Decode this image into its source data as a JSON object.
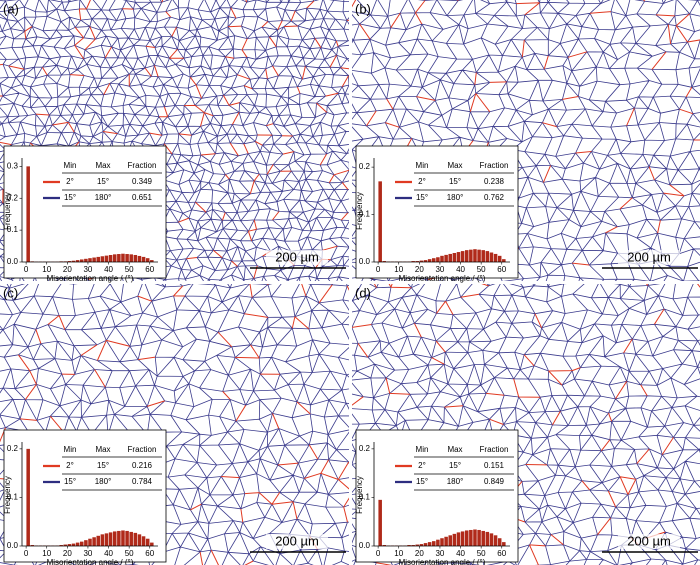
{
  "chart_data": [
    {
      "type": "histogram",
      "panel_label": "(a)",
      "scale_bar": "200 µm",
      "x_label": "Misorientation angle / (°)",
      "y_label": "Frequency",
      "color": "#b02a1a",
      "bins": [
        0,
        2,
        4,
        6,
        8,
        10,
        12,
        14,
        16,
        18,
        20,
        22,
        24,
        26,
        28,
        30,
        32,
        34,
        36,
        38,
        40,
        42,
        44,
        46,
        48,
        50,
        52,
        54,
        56,
        58,
        60,
        62
      ],
      "values": [
        0.3,
        0.002,
        0.001,
        0.001,
        0.001,
        0.001,
        0.001,
        0.001,
        0.002,
        0.002,
        0.003,
        0.004,
        0.006,
        0.008,
        0.01,
        0.012,
        0.014,
        0.016,
        0.018,
        0.02,
        0.022,
        0.024,
        0.025,
        0.026,
        0.025,
        0.024,
        0.022,
        0.019,
        0.016,
        0.012,
        0.006
      ],
      "xlim": [
        -2,
        64
      ],
      "xticks": [
        0,
        10,
        20,
        30,
        40,
        50,
        60
      ],
      "ylim": [
        0,
        0.32
      ],
      "yticks": [
        {
          "value": 0,
          "label": "0.0"
        },
        0.1,
        0.2,
        0.3
      ],
      "table": {
        "header": [
          "Min",
          "Max",
          "Fraction"
        ],
        "rows": [
          {
            "color": "#e03a22",
            "cells": [
              "2°",
              "15°",
              0.349
            ]
          },
          {
            "color": "#2e2e80",
            "cells": [
              "15°",
              "180°",
              0.651
            ]
          }
        ]
      }
    },
    {
      "type": "histogram",
      "panel_label": "(b)",
      "scale_bar": "200 µm",
      "x_label": "Misorientation angle / (°)",
      "y_label": "Frequency",
      "color": "#b02a1a",
      "bins": [
        0,
        2,
        4,
        6,
        8,
        10,
        12,
        14,
        16,
        18,
        20,
        22,
        24,
        26,
        28,
        30,
        32,
        34,
        36,
        38,
        40,
        42,
        44,
        46,
        48,
        50,
        52,
        54,
        56,
        58,
        60,
        62
      ],
      "values": [
        0.17,
        0.002,
        0.001,
        0.001,
        0.001,
        0.001,
        0.001,
        0.001,
        0.002,
        0.002,
        0.003,
        0.004,
        0.006,
        0.008,
        0.01,
        0.013,
        0.015,
        0.017,
        0.019,
        0.021,
        0.023,
        0.025,
        0.026,
        0.027,
        0.026,
        0.025,
        0.023,
        0.02,
        0.017,
        0.013,
        0.006
      ],
      "xlim": [
        -2,
        64
      ],
      "xticks": [
        0,
        10,
        20,
        30,
        40,
        50,
        60
      ],
      "ylim": [
        0,
        0.215
      ],
      "yticks": [
        {
          "value": 0,
          "label": "0.0"
        },
        0.1,
        0.2
      ],
      "table": {
        "header": [
          "Min",
          "Max",
          "Fraction"
        ],
        "rows": [
          {
            "color": "#e03a22",
            "cells": [
              "2°",
              "15°",
              0.238
            ]
          },
          {
            "color": "#2e2e80",
            "cells": [
              "15°",
              "180°",
              0.762
            ]
          }
        ]
      }
    },
    {
      "type": "histogram",
      "panel_label": "(c)",
      "scale_bar": "200 µm",
      "x_label": "Misorientation angle / (°)",
      "y_label": "Frequency",
      "color": "#b02a1a",
      "bins": [
        0,
        2,
        4,
        6,
        8,
        10,
        12,
        14,
        16,
        18,
        20,
        22,
        24,
        26,
        28,
        30,
        32,
        34,
        36,
        38,
        40,
        42,
        44,
        46,
        48,
        50,
        52,
        54,
        56,
        58,
        60,
        62
      ],
      "values": [
        0.2,
        0.002,
        0.001,
        0.001,
        0.001,
        0.001,
        0.001,
        0.001,
        0.002,
        0.003,
        0.004,
        0.005,
        0.007,
        0.009,
        0.012,
        0.015,
        0.018,
        0.021,
        0.024,
        0.026,
        0.028,
        0.03,
        0.031,
        0.032,
        0.031,
        0.029,
        0.027,
        0.024,
        0.02,
        0.015,
        0.007
      ],
      "xlim": [
        -2,
        64
      ],
      "xticks": [
        0,
        10,
        20,
        30,
        40,
        50,
        60
      ],
      "ylim": [
        0,
        0.21
      ],
      "yticks": [
        {
          "value": 0,
          "label": "0.0"
        },
        0.1,
        0.2
      ],
      "table": {
        "header": [
          "Min",
          "Max",
          "Fraction"
        ],
        "rows": [
          {
            "color": "#e03a22",
            "cells": [
              "2°",
              "15°",
              0.216
            ]
          },
          {
            "color": "#2e2e80",
            "cells": [
              "15°",
              "180°",
              0.784
            ]
          }
        ]
      }
    },
    {
      "type": "histogram",
      "panel_label": "(d)",
      "scale_bar": "200 µm",
      "x_label": "Misorientation angle / (°)",
      "y_label": "Frequency",
      "color": "#b02a1a",
      "bins": [
        0,
        2,
        4,
        6,
        8,
        10,
        12,
        14,
        16,
        18,
        20,
        22,
        24,
        26,
        28,
        30,
        32,
        34,
        36,
        38,
        40,
        42,
        44,
        46,
        48,
        50,
        52,
        54,
        56,
        58,
        60,
        62
      ],
      "values": [
        0.095,
        0.002,
        0.001,
        0.001,
        0.001,
        0.001,
        0.001,
        0.002,
        0.002,
        0.003,
        0.004,
        0.006,
        0.008,
        0.01,
        0.013,
        0.016,
        0.019,
        0.022,
        0.025,
        0.028,
        0.03,
        0.032,
        0.033,
        0.034,
        0.033,
        0.031,
        0.029,
        0.026,
        0.022,
        0.016,
        0.008
      ],
      "xlim": [
        -2,
        64
      ],
      "xticks": [
        0,
        10,
        20,
        30,
        40,
        50,
        60
      ],
      "ylim": [
        0,
        0.21
      ],
      "yticks": [
        {
          "value": 0,
          "label": "0.0"
        },
        0.1,
        0.2
      ],
      "table": {
        "header": [
          "Min",
          "Max",
          "Fraction"
        ],
        "rows": [
          {
            "color": "#e03a22",
            "cells": [
              "2°",
              "15°",
              0.151
            ]
          },
          {
            "color": "#2e2e80",
            "cells": [
              "15°",
              "180°",
              0.849
            ]
          }
        ]
      }
    }
  ]
}
